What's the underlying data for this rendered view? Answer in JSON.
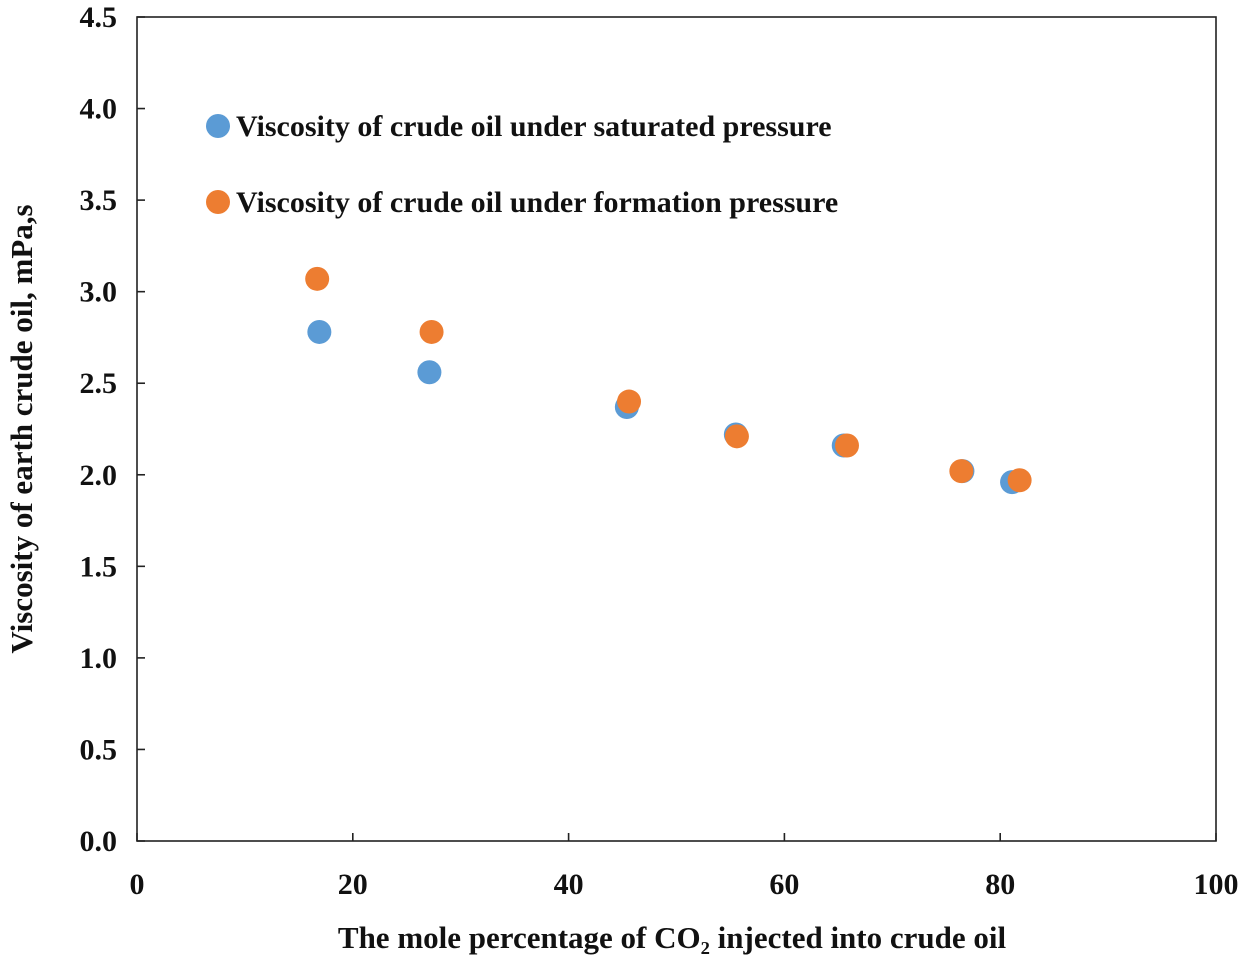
{
  "chart_data": {
    "type": "scatter",
    "title": "",
    "xlabel": "The mole percentage of CO₂ injected into crude oil",
    "ylabel": "Viscosity of earth crude oil, mPa,s",
    "xlim": [
      0,
      100
    ],
    "ylim": [
      0,
      4.5
    ],
    "x_ticks": [
      "0",
      "20",
      "40",
      "60",
      "80",
      "100"
    ],
    "y_ticks": [
      "0.0",
      "0.5",
      "1.0",
      "1.5",
      "2.0",
      "2.5",
      "3.0",
      "3.5",
      "4.0",
      "4.5"
    ],
    "grid": false,
    "legend_position": "top-left",
    "series": [
      {
        "name": "Viscosity of crude oil under saturated pressure",
        "color": "#5b9bd5",
        "x": [
          16.9,
          27.1,
          45.4,
          55.5,
          65.5,
          76.5,
          81.1
        ],
        "y": [
          2.78,
          2.56,
          2.37,
          2.22,
          2.16,
          2.02,
          1.96
        ]
      },
      {
        "name": "Viscosity of crude oil under formation pressure",
        "color": "#ed7d31",
        "x": [
          16.7,
          27.3,
          45.6,
          55.6,
          65.8,
          76.4,
          81.8
        ],
        "y": [
          3.07,
          2.78,
          2.4,
          2.21,
          2.16,
          2.02,
          1.97
        ]
      }
    ]
  }
}
